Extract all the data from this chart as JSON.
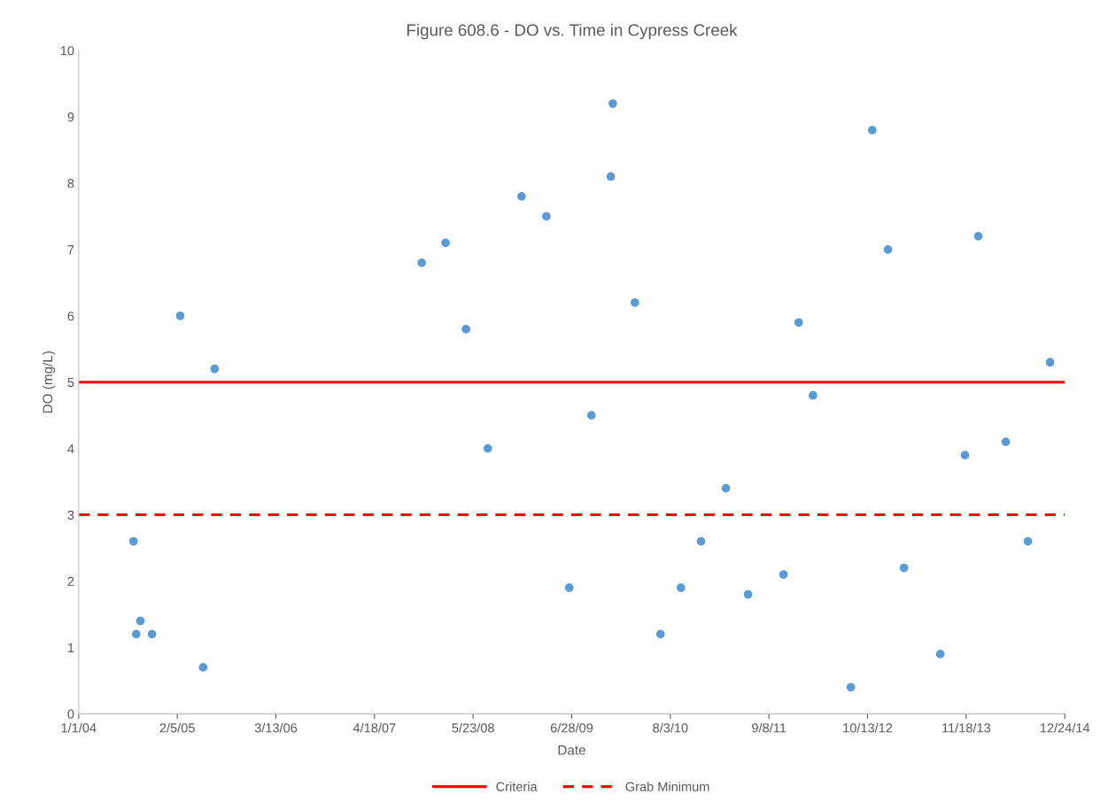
{
  "chart_data": {
    "type": "scatter",
    "title": "Figure 608.6 - DO vs. Time in Cypress Creek",
    "xlabel": "Date",
    "ylabel": "DO (mg/L)",
    "x": [
      "2004-08-11",
      "2004-08-22",
      "2004-09-08",
      "2004-10-25",
      "2005-02-17",
      "2005-05-21",
      "2005-07-07",
      "2007-10-27",
      "2008-02-01",
      "2008-04-24",
      "2008-07-22",
      "2008-12-06",
      "2009-03-17",
      "2009-06-18",
      "2009-09-16",
      "2009-12-04",
      "2009-12-12",
      "2010-03-12",
      "2010-06-24",
      "2010-09-15",
      "2010-12-06",
      "2011-03-17",
      "2011-06-15",
      "2011-11-06",
      "2012-01-07",
      "2012-03-05",
      "2012-08-06",
      "2012-11-01",
      "2013-01-04",
      "2013-03-10",
      "2013-08-05",
      "2013-11-13",
      "2014-01-06",
      "2014-04-28",
      "2014-07-27",
      "2014-10-25"
    ],
    "series": [
      {
        "color": "#5b9bd5",
        "values": [
          2.6,
          1.2,
          1.4,
          1.2,
          6.0,
          0.7,
          5.2,
          6.8,
          7.1,
          5.8,
          4.0,
          7.8,
          7.5,
          1.9,
          4.5,
          8.1,
          9.2,
          6.2,
          1.2,
          1.9,
          2.6,
          3.4,
          1.8,
          2.1,
          5.9,
          4.8,
          0.4,
          8.8,
          7.0,
          2.2,
          0.9,
          3.9,
          7.2,
          4.1,
          2.6,
          5.3
        ]
      }
    ],
    "xlim": [
      "2004-01-01",
      "2014-12-24"
    ],
    "xticks": [
      {
        "value": "2004-01-01",
        "label": "1/1/04"
      },
      {
        "value": "2005-02-05",
        "label": "2/5/05"
      },
      {
        "value": "2006-03-13",
        "label": "3/13/06"
      },
      {
        "value": "2007-04-18",
        "label": "4/18/07"
      },
      {
        "value": "2008-05-23",
        "label": "5/23/08"
      },
      {
        "value": "2009-06-28",
        "label": "6/28/09"
      },
      {
        "value": "2010-08-03",
        "label": "8/3/10"
      },
      {
        "value": "2011-09-08",
        "label": "9/8/11"
      },
      {
        "value": "2012-10-13",
        "label": "10/13/12"
      },
      {
        "value": "2013-11-18",
        "label": "11/18/13"
      },
      {
        "value": "2014-12-24",
        "label": "12/24/14"
      }
    ],
    "ylim": [
      0,
      10
    ],
    "yticks": [
      0,
      1,
      2,
      3,
      4,
      5,
      6,
      7,
      8,
      9,
      10
    ],
    "ref_lines": [
      {
        "axis": "y",
        "value": 5,
        "label": "Criteria",
        "color": "#ff0000",
        "line_style": "solid"
      },
      {
        "axis": "y",
        "value": 3,
        "label": "Grab Minimum",
        "color": "#ff0000",
        "line_style": "dashed"
      }
    ],
    "marker": "circle",
    "grid": false,
    "legend": "bottom"
  }
}
